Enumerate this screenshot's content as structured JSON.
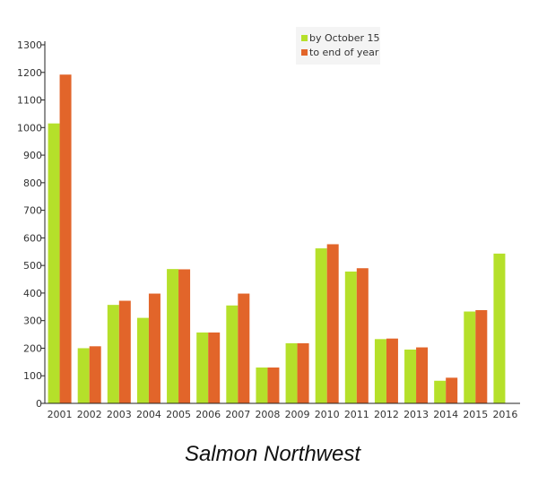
{
  "chart_data": {
    "type": "bar",
    "title": "Salmon Northwest",
    "xlabel": "",
    "ylabel": "",
    "ylim": [
      0,
      1300
    ],
    "yticks": [
      0,
      100,
      200,
      300,
      400,
      500,
      600,
      700,
      800,
      900,
      1000,
      1100,
      1200,
      1300
    ],
    "grid": false,
    "legend_position": "top-right",
    "categories": [
      "2001",
      "2002",
      "2003",
      "2004",
      "2005",
      "2006",
      "2007",
      "2008",
      "2009",
      "2010",
      "2011",
      "2012",
      "2013",
      "2014",
      "2015",
      "2016"
    ],
    "series": [
      {
        "name": "by October 15",
        "color": "#b5e02a",
        "values": [
          1015,
          200,
          357,
          310,
          487,
          257,
          355,
          130,
          218,
          562,
          478,
          233,
          195,
          82,
          333,
          543
        ]
      },
      {
        "name": "to end of year",
        "color": "#e2652a",
        "values": [
          1192,
          207,
          372,
          398,
          486,
          257,
          398,
          130,
          218,
          577,
          490,
          235,
          203,
          93,
          338,
          0
        ]
      }
    ]
  }
}
